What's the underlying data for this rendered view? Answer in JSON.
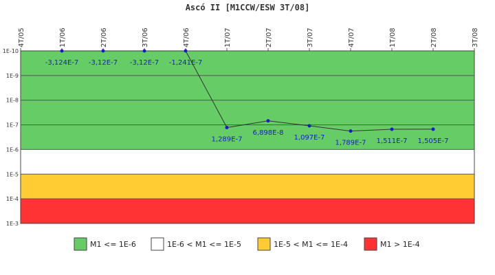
{
  "chart_data": {
    "type": "line",
    "title": "Ascó II [M1CCW/ESW 3T/08]",
    "xlabel": "",
    "ylabel": "",
    "x_ticks": [
      "4T/05",
      "1T/06",
      "2T/06",
      "3T/06",
      "4T/06",
      "1T/07",
      "2T/07",
      "3T/07",
      "4T/07",
      "1T/08",
      "2T/08",
      "3T/08"
    ],
    "y_scale": "log",
    "y_ticks": [
      "1E-10",
      "1E-9",
      "1E-8",
      "1E-7",
      "1E-6",
      "1E-5",
      "1E-4",
      "1E-3"
    ],
    "ylim": [
      1e-10,
      0.001
    ],
    "y_inverted": true,
    "grid": true,
    "legend_position": "bottom",
    "line_color": "#333333",
    "marker_color": "#1a1acc",
    "bands": [
      {
        "label": "M1 <= 1E-6",
        "from": 1e-10,
        "to": 1e-06,
        "color": "#66cc66"
      },
      {
        "label": "1E-6 < M1 <= 1E-5",
        "from": 1e-06,
        "to": 1e-05,
        "color": "#ffffff"
      },
      {
        "label": "1E-5 < M1 <= 1E-4",
        "from": 1e-05,
        "to": 0.0001,
        "color": "#ffcc33"
      },
      {
        "label": "M1 > 1E-4",
        "from": 0.0001,
        "to": 0.001,
        "color": "#ff3333"
      }
    ],
    "series": [
      {
        "points": [
          {
            "x": "1T/06",
            "y": 1e-10,
            "label": "-3,124E-7"
          },
          {
            "x": "2T/06",
            "y": 1e-10,
            "label": "-3,12E-7"
          },
          {
            "x": "3T/06",
            "y": 1e-10,
            "label": "-3,12E-7"
          },
          {
            "x": "4T/06",
            "y": 1e-10,
            "label": "-1,241E-7"
          },
          {
            "x": "1T/07",
            "y": 1.289e-07,
            "label": "1,289E-7"
          },
          {
            "x": "2T/07",
            "y": 6.898e-08,
            "label": "6,898E-8"
          },
          {
            "x": "3T/07",
            "y": 1.097e-07,
            "label": "1,097E-7"
          },
          {
            "x": "4T/07",
            "y": 1.789e-07,
            "label": "1,789E-7"
          },
          {
            "x": "1T/08",
            "y": 1.511e-07,
            "label": "1,511E-7"
          },
          {
            "x": "2T/08",
            "y": 1.505e-07,
            "label": "1,505E-7"
          }
        ]
      }
    ]
  }
}
